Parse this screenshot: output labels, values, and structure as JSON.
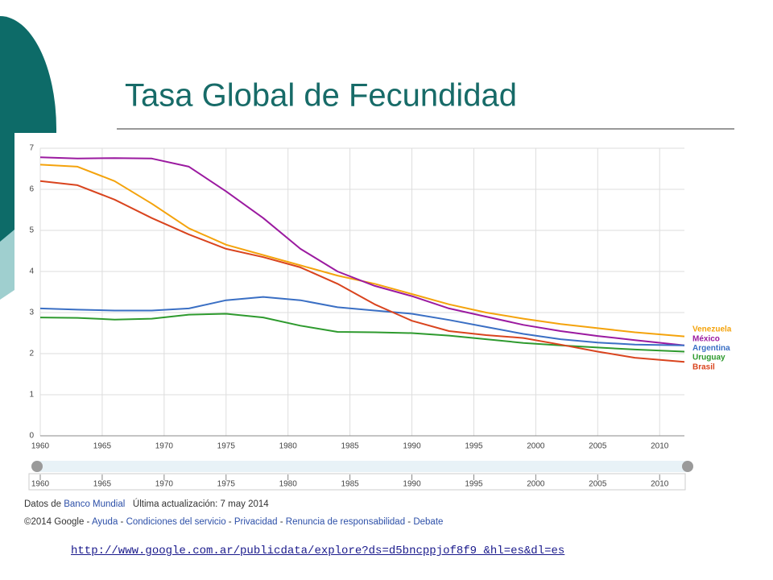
{
  "chart_data": {
    "type": "line",
    "title": "Tasa Global de Fecundidad",
    "x": [
      1960,
      1963,
      1966,
      1969,
      1972,
      1975,
      1978,
      1981,
      1984,
      1987,
      1990,
      1993,
      1996,
      1999,
      2002,
      2005,
      2008,
      2012
    ],
    "series": [
      {
        "name": "Venezuela",
        "color": "#f4a30c",
        "values": [
          6.6,
          6.55,
          6.2,
          5.65,
          5.05,
          4.65,
          4.4,
          4.15,
          3.9,
          3.7,
          3.45,
          3.2,
          3.0,
          2.85,
          2.72,
          2.62,
          2.52,
          2.42
        ]
      },
      {
        "name": "México",
        "color": "#9b1aa0",
        "values": [
          6.78,
          6.75,
          6.76,
          6.75,
          6.55,
          5.95,
          5.3,
          4.55,
          4.0,
          3.65,
          3.4,
          3.1,
          2.9,
          2.7,
          2.55,
          2.43,
          2.33,
          2.2
        ]
      },
      {
        "name": "Argentina",
        "color": "#3a6fc4",
        "values": [
          3.1,
          3.07,
          3.05,
          3.05,
          3.1,
          3.3,
          3.38,
          3.3,
          3.13,
          3.05,
          2.97,
          2.82,
          2.65,
          2.48,
          2.35,
          2.27,
          2.22,
          2.2
        ]
      },
      {
        "name": "Uruguay",
        "color": "#2e9a2e",
        "values": [
          2.88,
          2.87,
          2.83,
          2.85,
          2.95,
          2.97,
          2.88,
          2.68,
          2.53,
          2.52,
          2.5,
          2.44,
          2.35,
          2.26,
          2.2,
          2.15,
          2.1,
          2.05
        ]
      },
      {
        "name": "Brasil",
        "color": "#d9441e",
        "values": [
          6.2,
          6.1,
          5.75,
          5.3,
          4.9,
          4.55,
          4.35,
          4.1,
          3.7,
          3.2,
          2.8,
          2.55,
          2.45,
          2.38,
          2.22,
          2.05,
          1.9,
          1.8
        ]
      }
    ],
    "xlim": [
      1960,
      2012
    ],
    "ylim": [
      0,
      7
    ],
    "xticks": [
      1960,
      1965,
      1970,
      1975,
      1980,
      1985,
      1990,
      1995,
      2000,
      2005,
      2010
    ],
    "yticks": [
      0,
      1,
      2,
      3,
      4,
      5,
      6,
      7
    ],
    "grid": true,
    "legend": "right"
  },
  "attribution": {
    "prefix": "Datos de",
    "source": "Banco Mundial",
    "updated": "Última actualización: 7 may 2014"
  },
  "google_footer": {
    "copyright": "©2014 Google",
    "links": [
      "Ayuda",
      "Condiciones del servicio",
      "Privacidad",
      "Renuncia de responsabilidad",
      "Debate"
    ]
  },
  "url": "http://www.google.com.ar/publicdata/explore?ds=d5bncppjof8f9_&hl=es&dl=es"
}
